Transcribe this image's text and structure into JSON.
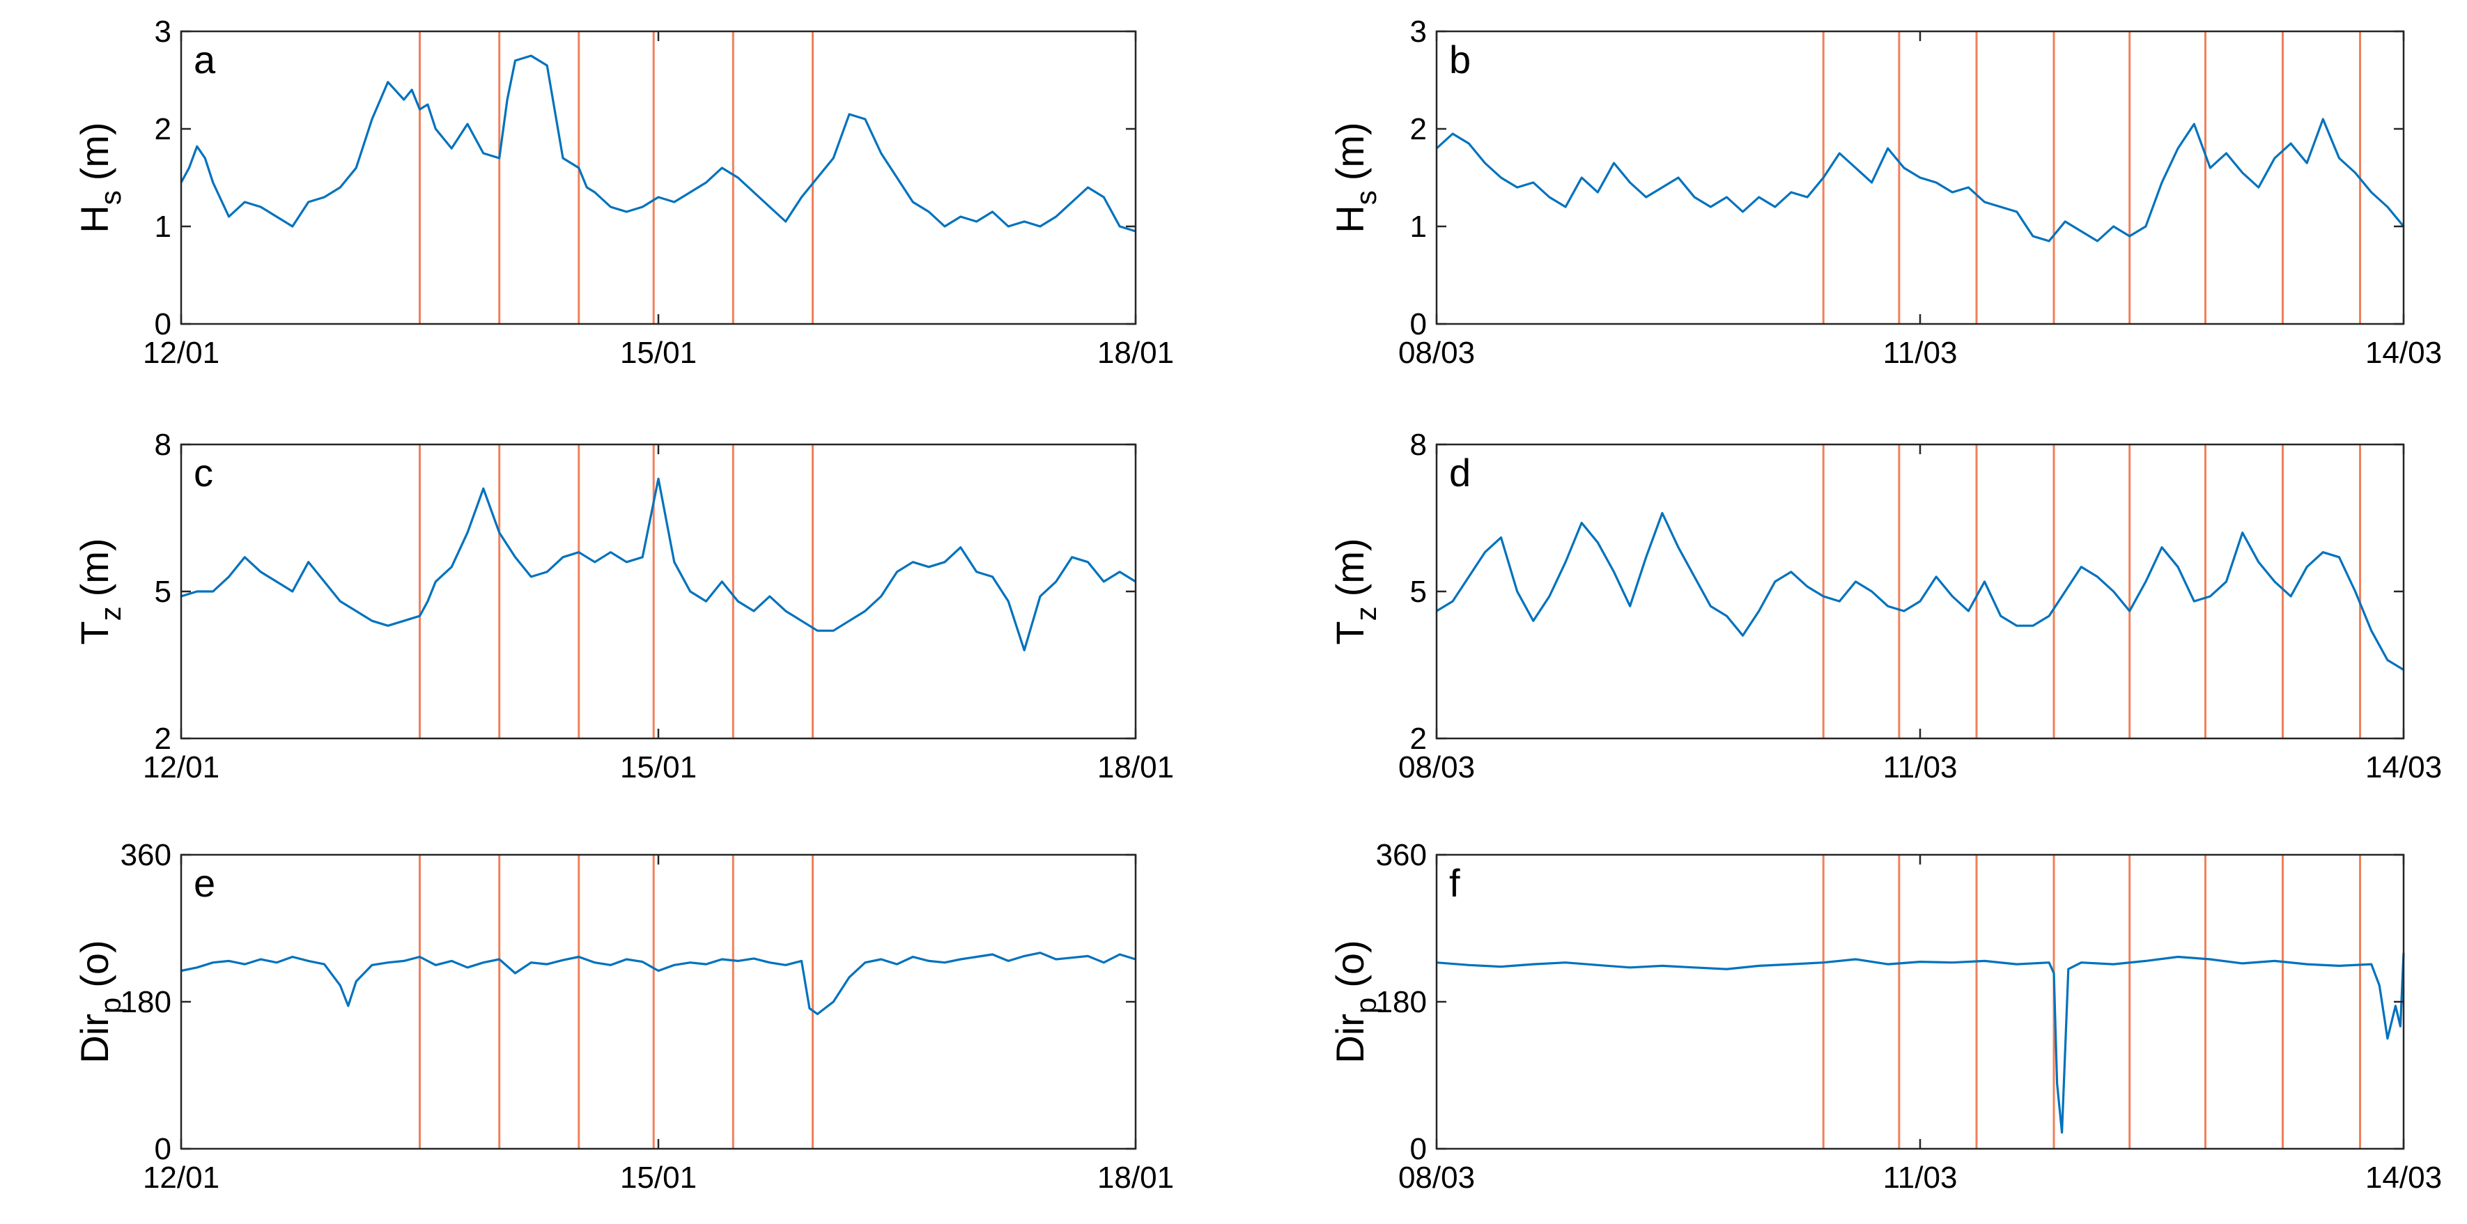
{
  "colors": {
    "series": "#0072BD",
    "event_lines": "#F0805A",
    "axes": "#262626"
  },
  "chart_data": [
    {
      "id": "a",
      "type": "line",
      "panel_label": "a",
      "ylabel": "H",
      "ylabel_sub": "s",
      "ylabel_unit": "(m)",
      "ylim": [
        0,
        3
      ],
      "yticks": [
        0,
        1,
        2,
        3
      ],
      "ytick_labels": [
        "0",
        "1",
        "2",
        "3"
      ],
      "xlim": [
        0,
        6
      ],
      "xticks": [
        0,
        3,
        6
      ],
      "xtick_labels": [
        "12/01",
        "15/01",
        "18/01"
      ],
      "event_lines": [
        1.5,
        2.0,
        2.5,
        2.97,
        3.47,
        3.97
      ],
      "series": [
        {
          "name": "Hs",
          "x": [
            0,
            0.05,
            0.1,
            0.15,
            0.2,
            0.3,
            0.4,
            0.5,
            0.6,
            0.7,
            0.8,
            0.9,
            1.0,
            1.1,
            1.2,
            1.3,
            1.4,
            1.45,
            1.5,
            1.55,
            1.6,
            1.7,
            1.8,
            1.9,
            2.0,
            2.05,
            2.1,
            2.2,
            2.3,
            2.4,
            2.5,
            2.55,
            2.6,
            2.7,
            2.8,
            2.9,
            3.0,
            3.1,
            3.2,
            3.3,
            3.4,
            3.5,
            3.6,
            3.7,
            3.8,
            3.9,
            4.0,
            4.1,
            4.2,
            4.3,
            4.4,
            4.5,
            4.6,
            4.7,
            4.8,
            4.9,
            5.0,
            5.1,
            5.2,
            5.3,
            5.4,
            5.5,
            5.6,
            5.7,
            5.8,
            5.9,
            6.0
          ],
          "values": [
            1.45,
            1.6,
            1.82,
            1.7,
            1.45,
            1.1,
            1.25,
            1.2,
            1.1,
            1.0,
            1.25,
            1.3,
            1.4,
            1.6,
            2.1,
            2.48,
            2.3,
            2.4,
            2.2,
            2.25,
            2.0,
            1.8,
            2.05,
            1.75,
            1.7,
            2.3,
            2.7,
            2.75,
            2.65,
            1.7,
            1.6,
            1.4,
            1.35,
            1.2,
            1.15,
            1.2,
            1.3,
            1.25,
            1.35,
            1.45,
            1.6,
            1.5,
            1.35,
            1.2,
            1.05,
            1.3,
            1.5,
            1.7,
            2.15,
            2.1,
            1.75,
            1.5,
            1.25,
            1.15,
            1.0,
            1.1,
            1.05,
            1.15,
            1.0,
            1.05,
            1.0,
            1.1,
            1.25,
            1.4,
            1.3,
            1.0,
            0.95
          ]
        }
      ]
    },
    {
      "id": "b",
      "type": "line",
      "panel_label": "b",
      "ylabel": "H",
      "ylabel_sub": "s",
      "ylabel_unit": "(m)",
      "ylim": [
        0,
        3
      ],
      "yticks": [
        0,
        1,
        2,
        3
      ],
      "ytick_labels": [
        "0",
        "1",
        "2",
        "3"
      ],
      "xlim": [
        0,
        6
      ],
      "xticks": [
        0,
        3,
        6
      ],
      "xtick_labels": [
        "08/03",
        "11/03",
        "14/03"
      ],
      "event_lines": [
        2.4,
        2.87,
        3.35,
        3.83,
        4.3,
        4.77,
        5.25,
        5.73
      ],
      "series": [
        {
          "name": "Hs",
          "x": [
            0,
            0.1,
            0.2,
            0.3,
            0.4,
            0.5,
            0.6,
            0.7,
            0.8,
            0.9,
            1.0,
            1.1,
            1.2,
            1.3,
            1.4,
            1.5,
            1.6,
            1.7,
            1.8,
            1.9,
            2.0,
            2.1,
            2.2,
            2.3,
            2.4,
            2.5,
            2.6,
            2.7,
            2.8,
            2.9,
            3.0,
            3.1,
            3.2,
            3.3,
            3.4,
            3.5,
            3.6,
            3.7,
            3.8,
            3.9,
            4.0,
            4.1,
            4.2,
            4.3,
            4.4,
            4.5,
            4.6,
            4.7,
            4.8,
            4.9,
            5.0,
            5.1,
            5.2,
            5.3,
            5.4,
            5.5,
            5.6,
            5.7,
            5.8,
            5.9,
            6.0
          ],
          "values": [
            1.8,
            1.95,
            1.85,
            1.65,
            1.5,
            1.4,
            1.45,
            1.3,
            1.2,
            1.5,
            1.35,
            1.65,
            1.45,
            1.3,
            1.4,
            1.5,
            1.3,
            1.2,
            1.3,
            1.15,
            1.3,
            1.2,
            1.35,
            1.3,
            1.5,
            1.75,
            1.6,
            1.45,
            1.8,
            1.6,
            1.5,
            1.45,
            1.35,
            1.4,
            1.25,
            1.2,
            1.15,
            0.9,
            0.85,
            1.05,
            0.95,
            0.85,
            1.0,
            0.9,
            1.0,
            1.45,
            1.8,
            2.05,
            1.6,
            1.75,
            1.55,
            1.4,
            1.7,
            1.85,
            1.65,
            2.1,
            1.7,
            1.55,
            1.35,
            1.2,
            1.0
          ]
        }
      ]
    },
    {
      "id": "c",
      "type": "line",
      "panel_label": "c",
      "ylabel": "T",
      "ylabel_sub": "z",
      "ylabel_unit": "(m)",
      "ylim": [
        2,
        8
      ],
      "yticks": [
        2,
        5,
        8
      ],
      "ytick_labels": [
        "2",
        "5",
        "8"
      ],
      "xlim": [
        0,
        6
      ],
      "xticks": [
        0,
        3,
        6
      ],
      "xtick_labels": [
        "12/01",
        "15/01",
        "18/01"
      ],
      "event_lines": [
        1.5,
        2.0,
        2.5,
        2.97,
        3.47,
        3.97
      ],
      "series": [
        {
          "name": "Tz",
          "x": [
            0,
            0.1,
            0.2,
            0.3,
            0.4,
            0.5,
            0.6,
            0.7,
            0.8,
            0.9,
            1.0,
            1.1,
            1.2,
            1.3,
            1.4,
            1.5,
            1.55,
            1.6,
            1.7,
            1.8,
            1.9,
            2.0,
            2.1,
            2.2,
            2.3,
            2.4,
            2.5,
            2.6,
            2.7,
            2.8,
            2.9,
            3.0,
            3.1,
            3.2,
            3.3,
            3.4,
            3.5,
            3.6,
            3.7,
            3.8,
            3.9,
            4.0,
            4.1,
            4.2,
            4.3,
            4.4,
            4.5,
            4.6,
            4.7,
            4.8,
            4.9,
            5.0,
            5.1,
            5.2,
            5.3,
            5.4,
            5.5,
            5.6,
            5.7,
            5.8,
            5.9,
            6.0
          ],
          "values": [
            4.9,
            5.0,
            5.0,
            5.3,
            5.7,
            5.4,
            5.2,
            5.0,
            5.6,
            5.2,
            4.8,
            4.6,
            4.4,
            4.3,
            4.4,
            4.5,
            4.8,
            5.2,
            5.5,
            6.2,
            7.1,
            6.2,
            5.7,
            5.3,
            5.4,
            5.7,
            5.8,
            5.6,
            5.8,
            5.6,
            5.7,
            7.3,
            5.6,
            5.0,
            4.8,
            5.2,
            4.8,
            4.6,
            4.9,
            4.6,
            4.4,
            4.2,
            4.2,
            4.4,
            4.6,
            4.9,
            5.4,
            5.6,
            5.5,
            5.6,
            5.9,
            5.4,
            5.3,
            4.8,
            3.8,
            4.9,
            5.2,
            5.7,
            5.6,
            5.2,
            5.4,
            5.2
          ]
        }
      ]
    },
    {
      "id": "d",
      "type": "line",
      "panel_label": "d",
      "ylabel": "T",
      "ylabel_sub": "z",
      "ylabel_unit": "(m)",
      "ylim": [
        2,
        8
      ],
      "yticks": [
        2,
        5,
        8
      ],
      "ytick_labels": [
        "2",
        "5",
        "8"
      ],
      "xlim": [
        0,
        6
      ],
      "xticks": [
        0,
        3,
        6
      ],
      "xtick_labels": [
        "08/03",
        "11/03",
        "14/03"
      ],
      "event_lines": [
        2.4,
        2.87,
        3.35,
        3.83,
        4.3,
        4.77,
        5.25,
        5.73
      ],
      "series": [
        {
          "name": "Tz",
          "x": [
            0,
            0.1,
            0.2,
            0.3,
            0.4,
            0.5,
            0.6,
            0.7,
            0.8,
            0.9,
            1.0,
            1.1,
            1.2,
            1.3,
            1.4,
            1.5,
            1.6,
            1.7,
            1.8,
            1.9,
            2.0,
            2.1,
            2.2,
            2.3,
            2.4,
            2.5,
            2.6,
            2.7,
            2.8,
            2.9,
            3.0,
            3.1,
            3.2,
            3.3,
            3.4,
            3.5,
            3.6,
            3.7,
            3.8,
            3.9,
            4.0,
            4.1,
            4.2,
            4.3,
            4.4,
            4.5,
            4.6,
            4.7,
            4.8,
            4.9,
            5.0,
            5.1,
            5.2,
            5.3,
            5.4,
            5.5,
            5.6,
            5.7,
            5.8,
            5.9,
            6.0
          ],
          "values": [
            4.6,
            4.8,
            5.3,
            5.8,
            6.1,
            5.0,
            4.4,
            4.9,
            5.6,
            6.4,
            6.0,
            5.4,
            4.7,
            5.7,
            6.6,
            5.9,
            5.3,
            4.7,
            4.5,
            4.1,
            4.6,
            5.2,
            5.4,
            5.1,
            4.9,
            4.8,
            5.2,
            5.0,
            4.7,
            4.6,
            4.8,
            5.3,
            4.9,
            4.6,
            5.2,
            4.5,
            4.3,
            4.3,
            4.5,
            5.0,
            5.5,
            5.3,
            5.0,
            4.6,
            5.2,
            5.9,
            5.5,
            4.8,
            4.9,
            5.2,
            6.2,
            5.6,
            5.2,
            4.9,
            5.5,
            5.8,
            5.7,
            5.0,
            4.2,
            3.6,
            3.4
          ]
        }
      ]
    },
    {
      "id": "e",
      "type": "line",
      "panel_label": "e",
      "ylabel": "Dir",
      "ylabel_sub": "p",
      "ylabel_unit": "(o)",
      "ylim": [
        0,
        360
      ],
      "yticks": [
        0,
        180,
        360
      ],
      "ytick_labels": [
        "0",
        "180",
        "360"
      ],
      "xlim": [
        0,
        6
      ],
      "xticks": [
        0,
        3,
        6
      ],
      "xtick_labels": [
        "12/01",
        "15/01",
        "18/01"
      ],
      "event_lines": [
        1.5,
        2.0,
        2.5,
        2.97,
        3.47,
        3.97
      ],
      "series": [
        {
          "name": "Dirp",
          "x": [
            0,
            0.1,
            0.2,
            0.3,
            0.4,
            0.5,
            0.6,
            0.7,
            0.8,
            0.9,
            1.0,
            1.05,
            1.1,
            1.2,
            1.3,
            1.4,
            1.5,
            1.6,
            1.7,
            1.8,
            1.9,
            2.0,
            2.1,
            2.2,
            2.3,
            2.4,
            2.5,
            2.6,
            2.7,
            2.8,
            2.9,
            3.0,
            3.1,
            3.2,
            3.3,
            3.4,
            3.5,
            3.6,
            3.7,
            3.8,
            3.9,
            3.95,
            4.0,
            4.1,
            4.2,
            4.3,
            4.4,
            4.5,
            4.6,
            4.7,
            4.8,
            4.9,
            5.0,
            5.1,
            5.2,
            5.3,
            5.4,
            5.5,
            5.6,
            5.7,
            5.8,
            5.9,
            6.0
          ],
          "values": [
            218,
            222,
            228,
            230,
            226,
            232,
            228,
            235,
            230,
            226,
            200,
            175,
            205,
            225,
            228,
            230,
            235,
            225,
            230,
            222,
            228,
            232,
            215,
            228,
            226,
            231,
            235,
            228,
            225,
            232,
            229,
            218,
            225,
            228,
            226,
            232,
            230,
            233,
            228,
            225,
            230,
            172,
            165,
            180,
            210,
            228,
            232,
            226,
            235,
            230,
            228,
            232,
            235,
            238,
            230,
            236,
            240,
            232,
            234,
            236,
            228,
            238,
            232
          ]
        }
      ]
    },
    {
      "id": "f",
      "type": "line",
      "panel_label": "f",
      "ylabel": "Dir",
      "ylabel_sub": "p",
      "ylabel_unit": "(o)",
      "ylim": [
        0,
        360
      ],
      "yticks": [
        0,
        180,
        360
      ],
      "ytick_labels": [
        "0",
        "180",
        "360"
      ],
      "xlim": [
        0,
        6
      ],
      "xticks": [
        0,
        3,
        6
      ],
      "xtick_labels": [
        "08/03",
        "11/03",
        "14/03"
      ],
      "event_lines": [
        2.4,
        2.87,
        3.35,
        3.83,
        4.3,
        4.77,
        5.25,
        5.73
      ],
      "series": [
        {
          "name": "Dirp",
          "x": [
            0,
            0.2,
            0.4,
            0.6,
            0.8,
            1.0,
            1.2,
            1.4,
            1.6,
            1.8,
            2.0,
            2.2,
            2.4,
            2.6,
            2.8,
            3.0,
            3.2,
            3.4,
            3.6,
            3.8,
            3.83,
            3.85,
            3.88,
            3.92,
            4.0,
            4.2,
            4.4,
            4.6,
            4.8,
            5.0,
            5.2,
            5.4,
            5.6,
            5.8,
            5.85,
            5.9,
            5.95,
            5.98,
            6.0
          ],
          "values": [
            228,
            225,
            223,
            226,
            228,
            225,
            222,
            224,
            222,
            220,
            224,
            226,
            228,
            232,
            226,
            229,
            228,
            230,
            226,
            228,
            215,
            80,
            20,
            220,
            228,
            226,
            230,
            235,
            232,
            227,
            230,
            226,
            224,
            226,
            200,
            135,
            175,
            150,
            240
          ]
        }
      ]
    }
  ]
}
